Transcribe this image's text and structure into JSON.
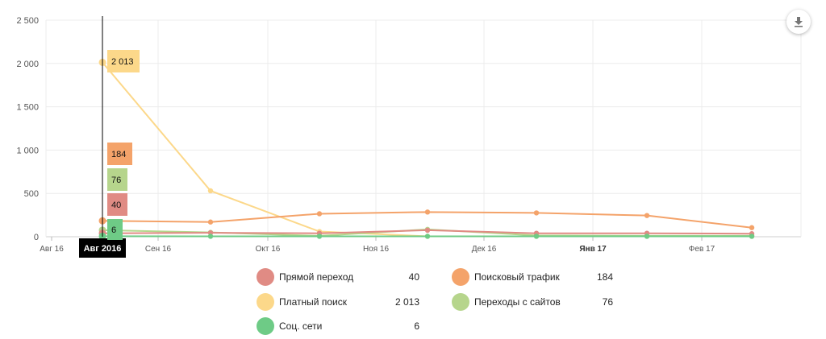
{
  "chart_data": {
    "type": "line",
    "y_ticks": [
      "0",
      "500",
      "1 000",
      "1 500",
      "2 000",
      "2 500"
    ],
    "ylim": [
      0,
      2500
    ],
    "x_ticks": [
      {
        "label": "Авг 16",
        "bold": false
      },
      {
        "label": "Сен 16",
        "bold": false
      },
      {
        "label": "Окт 16",
        "bold": false
      },
      {
        "label": "Ноя 16",
        "bold": false
      },
      {
        "label": "Дек 16",
        "bold": false
      },
      {
        "label": "Янв 17",
        "bold": true
      },
      {
        "label": "Фев 17",
        "bold": false
      }
    ],
    "x_points": [
      "2016-08-15",
      "2016-09-15",
      "2016-10-15",
      "2016-11-15",
      "2016-12-15",
      "2017-01-15",
      "2017-02-15"
    ],
    "grid": true,
    "legend_position": "bottom",
    "series": [
      {
        "name": "Прямой переход",
        "color": "#e08b84",
        "values": [
          40,
          45,
          40,
          75,
          40,
          40,
          35
        ],
        "total": "40"
      },
      {
        "name": "Поисковый трафик",
        "color": "#f4a36a",
        "values": [
          184,
          170,
          265,
          285,
          275,
          245,
          105
        ],
        "total": "184"
      },
      {
        "name": "Платный поиск",
        "color": "#fcd88a",
        "values": [
          2013,
          530,
          60,
          5,
          5,
          5,
          5
        ],
        "total": "2 013"
      },
      {
        "name": "Переходы с сайтов",
        "color": "#b6d58c",
        "values": [
          76,
          50,
          10,
          85,
          15,
          10,
          10
        ],
        "total": "76"
      },
      {
        "name": "Соц. сети",
        "color": "#6ecb86",
        "values": [
          6,
          5,
          5,
          5,
          5,
          5,
          5
        ],
        "total": "6"
      }
    ],
    "crosshair": {
      "label": "Авг 2016",
      "labels": [
        {
          "value": "2 013",
          "color": "#fcd88a"
        },
        {
          "value": "184",
          "color": "#f4a36a"
        },
        {
          "value": "76",
          "color": "#b6d58c"
        },
        {
          "value": "40",
          "color": "#e08b84"
        },
        {
          "value": "6",
          "color": "#6ecb86"
        }
      ]
    }
  },
  "toolbar": {
    "download_icon": "download-icon"
  }
}
